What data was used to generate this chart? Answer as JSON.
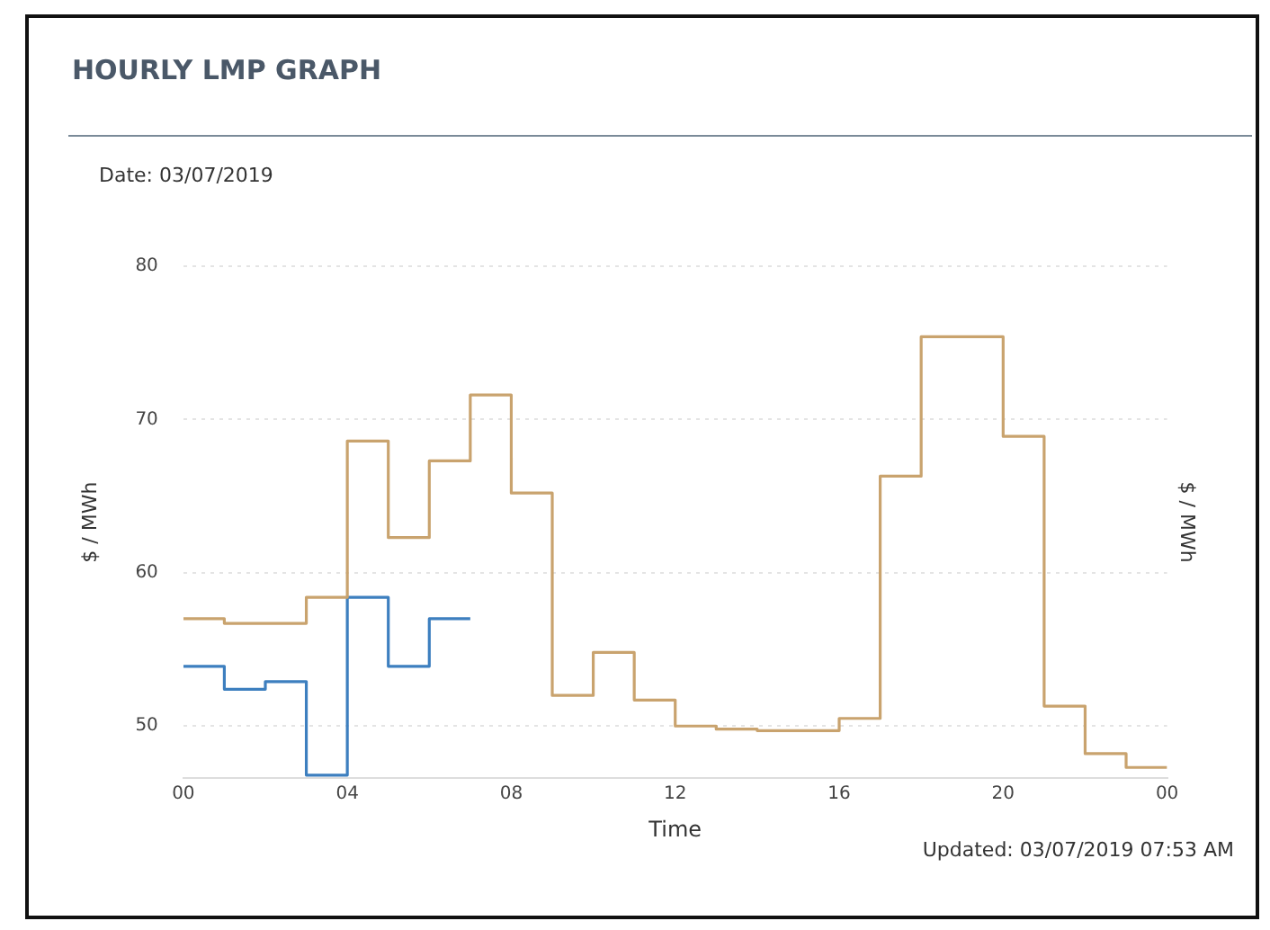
{
  "chart_data": {
    "type": "step",
    "title": "HOURLY LMP GRAPH",
    "xlabel": "Time",
    "ylabel": "$ / MWh",
    "y2label": "$ / MWh",
    "annotations": [
      "Date: 03/07/2019",
      "Updated: 03/07/2019 07:53 AM"
    ],
    "xlim": [
      0,
      24
    ],
    "xticks": [
      {
        "value": 0,
        "label": "00"
      },
      {
        "value": 4,
        "label": "04"
      },
      {
        "value": 8,
        "label": "08"
      },
      {
        "value": 12,
        "label": "12"
      },
      {
        "value": 16,
        "label": "16"
      },
      {
        "value": 20,
        "label": "20"
      },
      {
        "value": 24,
        "label": "00"
      }
    ],
    "ylim": [
      46.6,
      80
    ],
    "yticks": [
      50,
      60,
      70,
      80
    ],
    "grid": "y",
    "legend": false,
    "series": [
      {
        "color": "#c9a36e",
        "x": [
          0,
          1,
          2,
          3,
          4,
          5,
          6,
          7,
          8,
          9,
          10,
          11,
          12,
          13,
          14,
          15,
          16,
          17,
          18,
          19,
          20,
          21,
          22,
          23,
          24
        ],
        "values": [
          57.0,
          56.7,
          56.7,
          58.4,
          68.6,
          62.3,
          67.3,
          71.6,
          65.2,
          52.0,
          54.8,
          51.7,
          50.0,
          49.8,
          49.7,
          49.7,
          50.5,
          66.3,
          75.4,
          75.4,
          68.9,
          51.3,
          48.2,
          47.3,
          47.3
        ]
      },
      {
        "color": "#3d7fbf",
        "x": [
          0,
          1,
          2,
          3,
          4,
          5,
          6,
          7
        ],
        "values": [
          53.9,
          52.4,
          52.9,
          46.8,
          58.4,
          53.9,
          57.0,
          57.0
        ]
      }
    ]
  }
}
